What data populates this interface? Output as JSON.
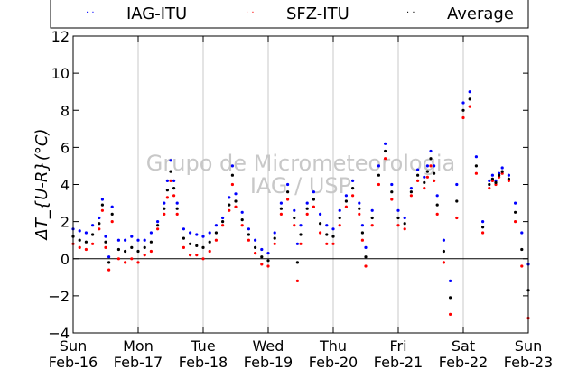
{
  "chart_data": {
    "type": "scatter",
    "title": "",
    "xlabel": "",
    "ylabel": "ΔT_{U-R}(°C)",
    "ylim": [
      -4,
      12
    ],
    "yticks": [
      -4,
      -2,
      0,
      2,
      4,
      6,
      8,
      10,
      12
    ],
    "xlim": [
      0,
      7
    ],
    "xticks": [
      {
        "x": 0,
        "day": "Sun",
        "date": "Feb-16"
      },
      {
        "x": 1,
        "day": "Mon",
        "date": "Feb-17"
      },
      {
        "x": 2,
        "day": "Tue",
        "date": "Feb-18"
      },
      {
        "x": 3,
        "day": "Wed",
        "date": "Feb-19"
      },
      {
        "x": 4,
        "day": "Thu",
        "date": "Feb-20"
      },
      {
        "x": 5,
        "day": "Fri",
        "date": "Feb-21"
      },
      {
        "x": 6,
        "day": "Sat",
        "date": "Feb-22"
      },
      {
        "x": 7,
        "day": "Sun",
        "date": "Feb-23"
      }
    ],
    "grid": "vertical",
    "zero_line": true,
    "legend_position": "top",
    "watermark": [
      "Grupo de Micrometeorologia",
      "IAG / USP"
    ],
    "series": [
      {
        "name": "IAG-ITU",
        "color": "#0000ff",
        "marker": "dot",
        "x": [
          0.0,
          0.1,
          0.2,
          0.3,
          0.4,
          0.45,
          0.5,
          0.55,
          0.6,
          0.7,
          0.8,
          0.9,
          1.0,
          1.1,
          1.2,
          1.3,
          1.4,
          1.45,
          1.5,
          1.55,
          1.6,
          1.7,
          1.8,
          1.9,
          2.0,
          2.1,
          2.2,
          2.3,
          2.4,
          2.45,
          2.5,
          2.6,
          2.7,
          2.8,
          2.9,
          3.0,
          3.1,
          3.2,
          3.3,
          3.4,
          3.45,
          3.5,
          3.6,
          3.7,
          3.8,
          3.9,
          4.0,
          4.1,
          4.2,
          4.3,
          4.4,
          4.45,
          4.5,
          4.6,
          4.7,
          4.8,
          4.9,
          5.0,
          5.1,
          5.2,
          5.3,
          5.4,
          5.45,
          5.5,
          5.55,
          5.6,
          5.7,
          5.8,
          5.9,
          6.0,
          6.1,
          6.2,
          6.3,
          6.4,
          6.45,
          6.5,
          6.55,
          6.6,
          6.7,
          6.8,
          6.9,
          7.0
        ],
        "y": [
          1.6,
          1.5,
          1.4,
          1.8,
          2.2,
          3.2,
          1.2,
          0.1,
          2.8,
          1.0,
          1.0,
          1.2,
          1.0,
          1.0,
          1.4,
          2.0,
          3.0,
          4.2,
          5.3,
          4.2,
          3.0,
          1.6,
          1.4,
          1.3,
          1.2,
          1.4,
          1.8,
          2.2,
          3.3,
          5.0,
          3.5,
          2.5,
          1.6,
          1.0,
          0.5,
          0.3,
          1.4,
          3.0,
          4.0,
          2.6,
          0.8,
          1.8,
          3.0,
          3.6,
          2.4,
          1.8,
          1.6,
          2.6,
          3.4,
          4.2,
          3.0,
          1.8,
          0.6,
          2.6,
          5.0,
          6.2,
          4.0,
          2.6,
          2.2,
          3.8,
          4.8,
          4.4,
          5.0,
          5.8,
          5.0,
          3.4,
          1.0,
          -1.2,
          4.0,
          8.4,
          9.0,
          5.5,
          2.0,
          4.2,
          4.5,
          4.2,
          4.6,
          4.9,
          4.5,
          3.0,
          1.4,
          -0.3
        ]
      },
      {
        "name": "SFZ-ITU",
        "color": "#ff0000",
        "marker": "dot",
        "x": [
          0.0,
          0.1,
          0.2,
          0.3,
          0.4,
          0.45,
          0.5,
          0.55,
          0.6,
          0.7,
          0.8,
          0.9,
          1.0,
          1.1,
          1.2,
          1.3,
          1.4,
          1.45,
          1.5,
          1.55,
          1.6,
          1.7,
          1.8,
          1.9,
          2.0,
          2.1,
          2.2,
          2.3,
          2.4,
          2.45,
          2.5,
          2.6,
          2.7,
          2.8,
          2.9,
          3.0,
          3.1,
          3.2,
          3.3,
          3.4,
          3.45,
          3.5,
          3.6,
          3.7,
          3.8,
          3.9,
          4.0,
          4.1,
          4.2,
          4.3,
          4.4,
          4.45,
          4.5,
          4.6,
          4.7,
          4.8,
          4.9,
          5.0,
          5.1,
          5.2,
          5.3,
          5.4,
          5.45,
          5.5,
          5.55,
          5.6,
          5.7,
          5.8,
          5.9,
          6.0,
          6.1,
          6.2,
          6.3,
          6.4,
          6.45,
          6.5,
          6.55,
          6.6,
          6.7,
          6.8,
          6.9,
          7.0
        ],
        "y": [
          0.8,
          0.6,
          0.5,
          0.8,
          1.6,
          2.6,
          0.6,
          -0.6,
          2.0,
          0.0,
          -0.2,
          0.0,
          -0.2,
          0.2,
          0.4,
          1.6,
          2.4,
          3.3,
          4.2,
          3.4,
          2.4,
          0.6,
          0.2,
          0.2,
          0.0,
          0.4,
          1.0,
          1.8,
          2.6,
          4.0,
          2.8,
          1.8,
          1.0,
          0.3,
          -0.3,
          -0.4,
          0.8,
          2.4,
          3.2,
          1.8,
          -1.2,
          0.8,
          2.4,
          2.8,
          1.4,
          0.8,
          0.8,
          1.8,
          2.8,
          3.4,
          2.4,
          1.0,
          -0.4,
          1.8,
          4.0,
          5.4,
          3.2,
          1.8,
          1.6,
          3.4,
          4.2,
          3.8,
          4.4,
          5.0,
          4.2,
          2.4,
          -0.2,
          -3.0,
          2.2,
          7.6,
          8.2,
          4.6,
          1.4,
          3.8,
          4.2,
          4.0,
          4.4,
          4.6,
          4.2,
          2.0,
          -0.4,
          -3.2
        ]
      },
      {
        "name": "Average",
        "color": "#000000",
        "marker": "dot",
        "x": [
          0.0,
          0.1,
          0.2,
          0.3,
          0.4,
          0.45,
          0.5,
          0.55,
          0.6,
          0.7,
          0.8,
          0.9,
          1.0,
          1.1,
          1.2,
          1.3,
          1.4,
          1.45,
          1.5,
          1.55,
          1.6,
          1.7,
          1.8,
          1.9,
          2.0,
          2.1,
          2.2,
          2.3,
          2.4,
          2.45,
          2.5,
          2.6,
          2.7,
          2.8,
          2.9,
          3.0,
          3.1,
          3.2,
          3.3,
          3.4,
          3.45,
          3.5,
          3.6,
          3.7,
          3.8,
          3.9,
          4.0,
          4.1,
          4.2,
          4.3,
          4.4,
          4.45,
          4.5,
          4.6,
          4.7,
          4.8,
          4.9,
          5.0,
          5.1,
          5.2,
          5.3,
          5.4,
          5.45,
          5.5,
          5.55,
          5.6,
          5.7,
          5.8,
          5.9,
          6.0,
          6.1,
          6.2,
          6.3,
          6.4,
          6.45,
          6.5,
          6.55,
          6.6,
          6.7,
          6.8,
          6.9,
          7.0
        ],
        "y": [
          1.2,
          1.0,
          0.9,
          1.3,
          1.9,
          2.9,
          0.9,
          -0.2,
          2.4,
          0.5,
          0.4,
          0.6,
          0.4,
          0.6,
          0.9,
          1.8,
          2.7,
          3.7,
          4.7,
          3.8,
          2.7,
          1.1,
          0.8,
          0.7,
          0.6,
          0.9,
          1.4,
          2.0,
          2.9,
          4.5,
          3.1,
          2.1,
          1.3,
          0.6,
          0.1,
          -0.1,
          1.1,
          2.7,
          3.6,
          2.2,
          -0.2,
          1.3,
          2.7,
          3.2,
          1.9,
          1.3,
          1.2,
          2.2,
          3.1,
          3.8,
          2.7,
          1.4,
          0.1,
          2.2,
          4.5,
          5.8,
          3.6,
          2.2,
          1.9,
          3.6,
          4.5,
          4.1,
          4.7,
          5.4,
          4.6,
          2.9,
          0.4,
          -2.1,
          3.1,
          8.0,
          8.6,
          5.0,
          1.7,
          4.0,
          4.3,
          4.1,
          4.5,
          4.7,
          4.3,
          2.5,
          0.5,
          -1.7
        ]
      }
    ]
  }
}
